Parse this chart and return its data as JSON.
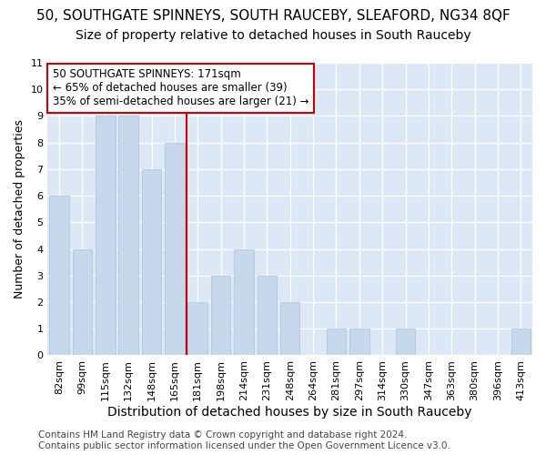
{
  "title_line1": "50, SOUTHGATE SPINNEYS, SOUTH RAUCEBY, SLEAFORD, NG34 8QF",
  "title_line2": "Size of property relative to detached houses in South Rauceby",
  "xlabel": "Distribution of detached houses by size in South Rauceby",
  "ylabel": "Number of detached properties",
  "categories": [
    "82sqm",
    "99sqm",
    "115sqm",
    "132sqm",
    "148sqm",
    "165sqm",
    "181sqm",
    "198sqm",
    "214sqm",
    "231sqm",
    "248sqm",
    "264sqm",
    "281sqm",
    "297sqm",
    "314sqm",
    "330sqm",
    "347sqm",
    "363sqm",
    "380sqm",
    "396sqm",
    "413sqm"
  ],
  "values": [
    6,
    4,
    9,
    9,
    7,
    8,
    2,
    3,
    4,
    3,
    2,
    0,
    1,
    1,
    0,
    1,
    0,
    0,
    0,
    0,
    1
  ],
  "bar_color": "#c8d8ec",
  "bar_edge_color": "#a8c0d8",
  "reference_line_color": "#cc0000",
  "annotation_text": "50 SOUTHGATE SPINNEYS: 171sqm\n← 65% of detached houses are smaller (39)\n35% of semi-detached houses are larger (21) →",
  "annotation_box_color": "#ffffff",
  "annotation_box_edge_color": "#cc0000",
  "ylim": [
    0,
    11
  ],
  "yticks": [
    0,
    1,
    2,
    3,
    4,
    5,
    6,
    7,
    8,
    9,
    10,
    11
  ],
  "footer_line1": "Contains HM Land Registry data © Crown copyright and database right 2024.",
  "footer_line2": "Contains public sector information licensed under the Open Government Licence v3.0.",
  "background_color": "#ffffff",
  "plot_bg_color": "#dce8f5",
  "grid_color": "#ffffff",
  "title1_fontsize": 11,
  "title2_fontsize": 10,
  "xlabel_fontsize": 10,
  "ylabel_fontsize": 9,
  "tick_fontsize": 8,
  "footer_fontsize": 7.5,
  "annotation_fontsize": 8.5
}
